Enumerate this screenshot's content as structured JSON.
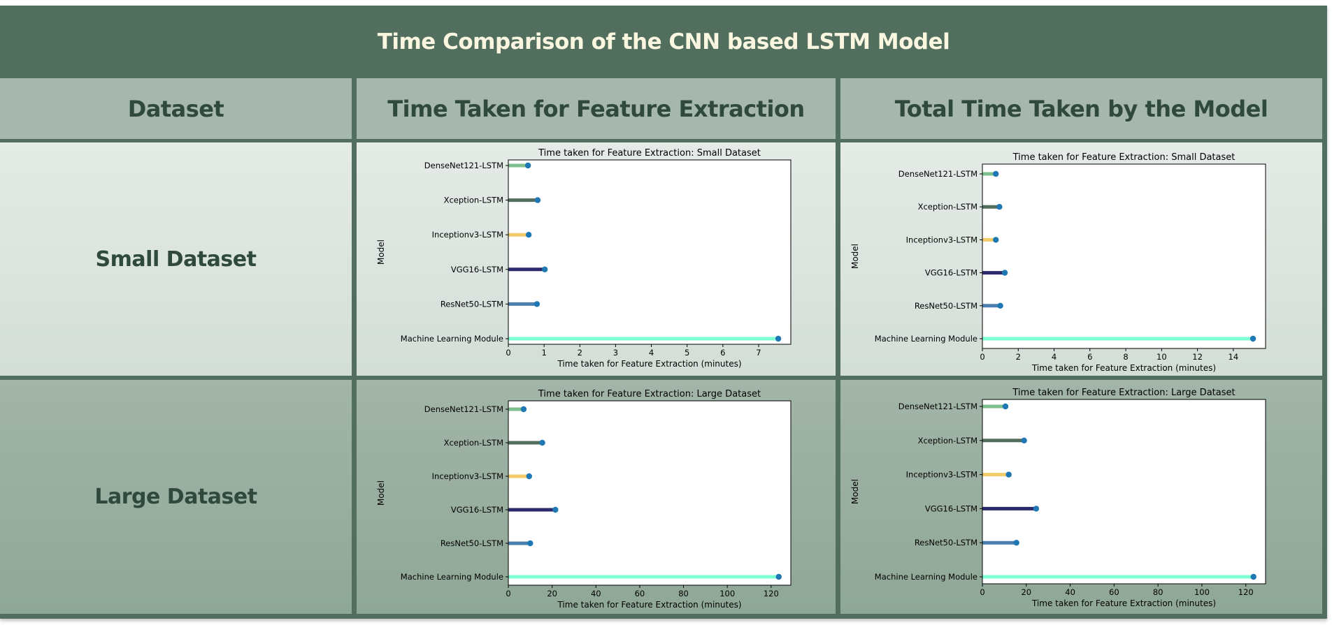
{
  "page": {
    "title": "Time Comparison of the CNN based LSTM Model",
    "headers": [
      "Dataset",
      "Time Taken for Feature Extraction",
      "Total Time Taken by the Model"
    ],
    "rows": [
      "Small Dataset",
      "Large Dataset"
    ]
  },
  "colors": {
    "frame": "#526e5e",
    "title_text": "#fbf6df",
    "header_bg": "#a6b8ad",
    "marker": "#1f77b4"
  },
  "chart_data": [
    {
      "type": "lollipop",
      "title": "Time taken for Feature Extraction: Small Dataset",
      "xlabel": "Time taken for Feature Extraction (minutes)",
      "ylabel": "Model",
      "categories": [
        "DenseNet121-LSTM",
        "Xception-LSTM",
        "Inceptionv3-LSTM",
        "VGG16-LSTM",
        "ResNet50-LSTM",
        "Machine Learning Module"
      ],
      "values": [
        0.55,
        0.82,
        0.57,
        1.02,
        0.8,
        7.55
      ],
      "colors": [
        "#7fbf8e",
        "#526e5e",
        "#f2cc6b",
        "#2a2a6c",
        "#4a7fb0",
        "#7fffd4"
      ],
      "xlim": [
        0,
        7.9
      ],
      "xticks": [
        0,
        1,
        2,
        3,
        4,
        5,
        6,
        7
      ],
      "grid": false
    },
    {
      "type": "lollipop",
      "title": "Time taken for Feature Extraction: Small Dataset",
      "xlabel": "Time taken for Feature Extraction (minutes)",
      "ylabel": "Model",
      "categories": [
        "DenseNet121-LSTM",
        "Xception-LSTM",
        "Inceptionv3-LSTM",
        "VGG16-LSTM",
        "ResNet50-LSTM",
        "Machine Learning Module"
      ],
      "values": [
        0.75,
        0.95,
        0.75,
        1.25,
        1.0,
        15.1
      ],
      "colors": [
        "#7fbf8e",
        "#526e5e",
        "#f2cc6b",
        "#2a2a6c",
        "#4a7fb0",
        "#7fffd4"
      ],
      "xlim": [
        0,
        15.8
      ],
      "xticks": [
        0,
        2,
        4,
        6,
        8,
        10,
        12,
        14
      ],
      "grid": false
    },
    {
      "type": "lollipop",
      "title": "Time taken for Feature Extraction: Large Dataset",
      "xlabel": "Time taken for Feature Extraction (minutes)",
      "ylabel": "Model",
      "categories": [
        "DenseNet121-LSTM",
        "Xception-LSTM",
        "Inceptionv3-LSTM",
        "VGG16-LSTM",
        "ResNet50-LSTM",
        "Machine Learning Module"
      ],
      "values": [
        7,
        15.5,
        9.5,
        21.5,
        10,
        123.5
      ],
      "colors": [
        "#7fbf8e",
        "#526e5e",
        "#f2cc6b",
        "#2a2a6c",
        "#4a7fb0",
        "#7fffd4"
      ],
      "xlim": [
        0,
        129
      ],
      "xticks": [
        0,
        20,
        40,
        60,
        80,
        100,
        120
      ],
      "grid": false
    },
    {
      "type": "lollipop",
      "title": "Time taken for Feature Extraction: Large Dataset",
      "xlabel": "Time taken for Feature Extraction (minutes)",
      "ylabel": "Model",
      "categories": [
        "DenseNet121-LSTM",
        "Xception-LSTM",
        "Inceptionv3-LSTM",
        "VGG16-LSTM",
        "ResNet50-LSTM",
        "Machine Learning Module"
      ],
      "values": [
        10.5,
        19,
        12,
        24.5,
        15.5,
        123.5
      ],
      "colors": [
        "#7fbf8e",
        "#526e5e",
        "#f2cc6b",
        "#2a2a6c",
        "#4a7fb0",
        "#7fffd4"
      ],
      "xlim": [
        0,
        129
      ],
      "xticks": [
        0,
        20,
        40,
        60,
        80,
        100,
        120
      ],
      "grid": false
    }
  ]
}
